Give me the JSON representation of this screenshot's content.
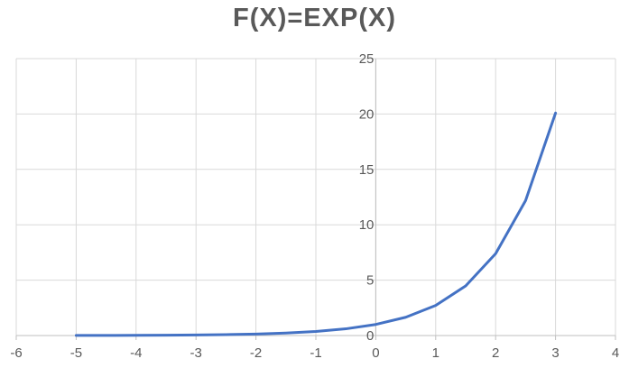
{
  "chart_data": {
    "type": "line",
    "title": "F(X)=EXP(X)",
    "xlabel": "",
    "ylabel": "",
    "xlim": [
      -6,
      4
    ],
    "ylim": [
      0,
      25
    ],
    "x_ticks": [
      -6,
      -5,
      -4,
      -3,
      -2,
      -1,
      0,
      1,
      2,
      3,
      4
    ],
    "y_ticks": [
      0,
      5,
      10,
      15,
      20,
      25
    ],
    "grid": true,
    "legend": "none",
    "series": [
      {
        "color": "#4472C4",
        "x": [
          -5,
          -4.5,
          -4,
          -3.5,
          -3,
          -2.5,
          -2,
          -1.5,
          -1,
          -0.5,
          0,
          0.5,
          1,
          1.5,
          2,
          2.5,
          3
        ],
        "y": [
          0.007,
          0.011,
          0.018,
          0.03,
          0.05,
          0.082,
          0.135,
          0.223,
          0.368,
          0.607,
          1.0,
          1.649,
          2.718,
          4.482,
          7.389,
          12.182,
          20.086
        ]
      }
    ]
  }
}
